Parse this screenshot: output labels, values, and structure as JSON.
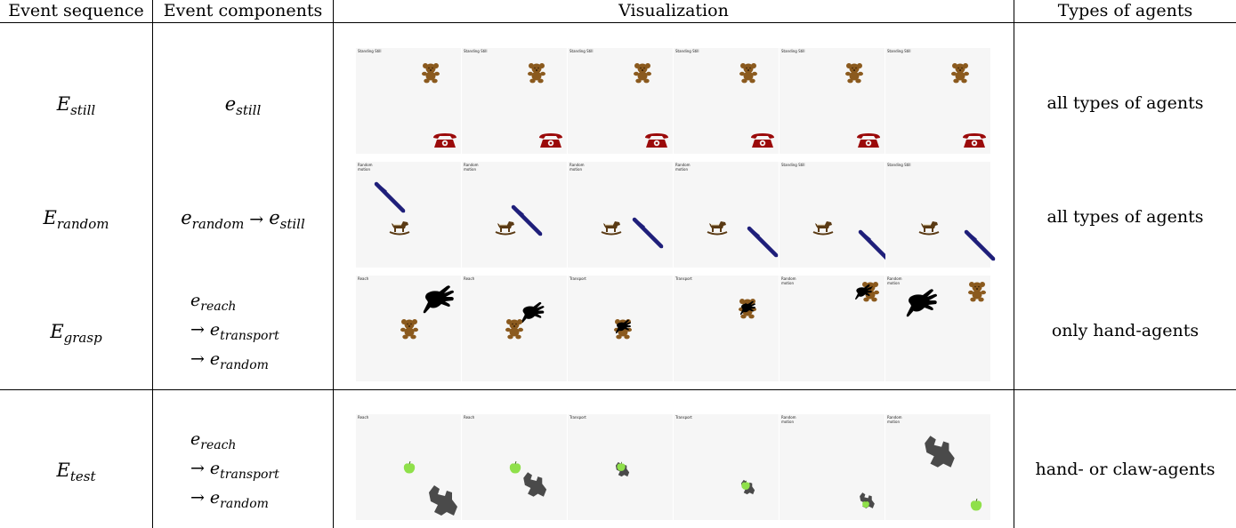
{
  "headers": {
    "sequence": "Event sequence",
    "components": "Event components",
    "visualization": "Visualization",
    "agents": "Types of agents"
  },
  "rows": [
    {
      "sequence": {
        "symbol": "E",
        "sub": "still"
      },
      "components": [
        {
          "symbol": "e",
          "sub": "still"
        }
      ],
      "agents": "all types of agents",
      "frames": [
        "Standing Still",
        "Standing Still",
        "Standing Still",
        "Standing Still",
        "Standing Still",
        "Standing Still"
      ]
    },
    {
      "sequence": {
        "symbol": "E",
        "sub": "random"
      },
      "components": [
        {
          "symbol": "e",
          "sub": "random"
        },
        {
          "symbol": "e",
          "sub": "still"
        }
      ],
      "agents": "all types of agents",
      "frames": [
        "Random motion",
        "Random motion",
        "Random motion",
        "Random motion",
        "Standing Still",
        "Standing Still"
      ]
    },
    {
      "sequence": {
        "symbol": "E",
        "sub": "grasp"
      },
      "components": [
        {
          "symbol": "e",
          "sub": "reach"
        },
        {
          "symbol": "e",
          "sub": "transport"
        },
        {
          "symbol": "e",
          "sub": "random"
        }
      ],
      "agents": "only hand-agents",
      "frames": [
        "Reach",
        "Reach",
        "Transport",
        "Transport",
        "Random motion",
        "Random motion"
      ]
    },
    {
      "sequence": {
        "symbol": "E",
        "sub": "test"
      },
      "components": [
        {
          "symbol": "e",
          "sub": "reach"
        },
        {
          "symbol": "e",
          "sub": "transport"
        },
        {
          "symbol": "e",
          "sub": "random"
        }
      ],
      "agents": "hand- or claw-agents",
      "frames": [
        "Reach",
        "Reach",
        "Transport",
        "Transport",
        "Random motion",
        "Random motion"
      ]
    }
  ],
  "arrow": "→",
  "icons": {
    "row1": [
      "teddy-bear-icon",
      "telephone-icon"
    ],
    "row2": [
      "rocking-horse-icon",
      "pen-icon"
    ],
    "row3": [
      "teddy-bear-icon",
      "hand-icon"
    ],
    "row4": [
      "apple-icon",
      "claw-icon"
    ]
  },
  "colors": {
    "bear": "#8b5a1e",
    "phone": "#9b0a0a",
    "pen": "#1f1f7a",
    "horse": "#5a3a14",
    "hand": "#000000",
    "apple": "#8fe04a",
    "claw": "#4a4a4a",
    "frame_bg": "#f6f6f6"
  }
}
